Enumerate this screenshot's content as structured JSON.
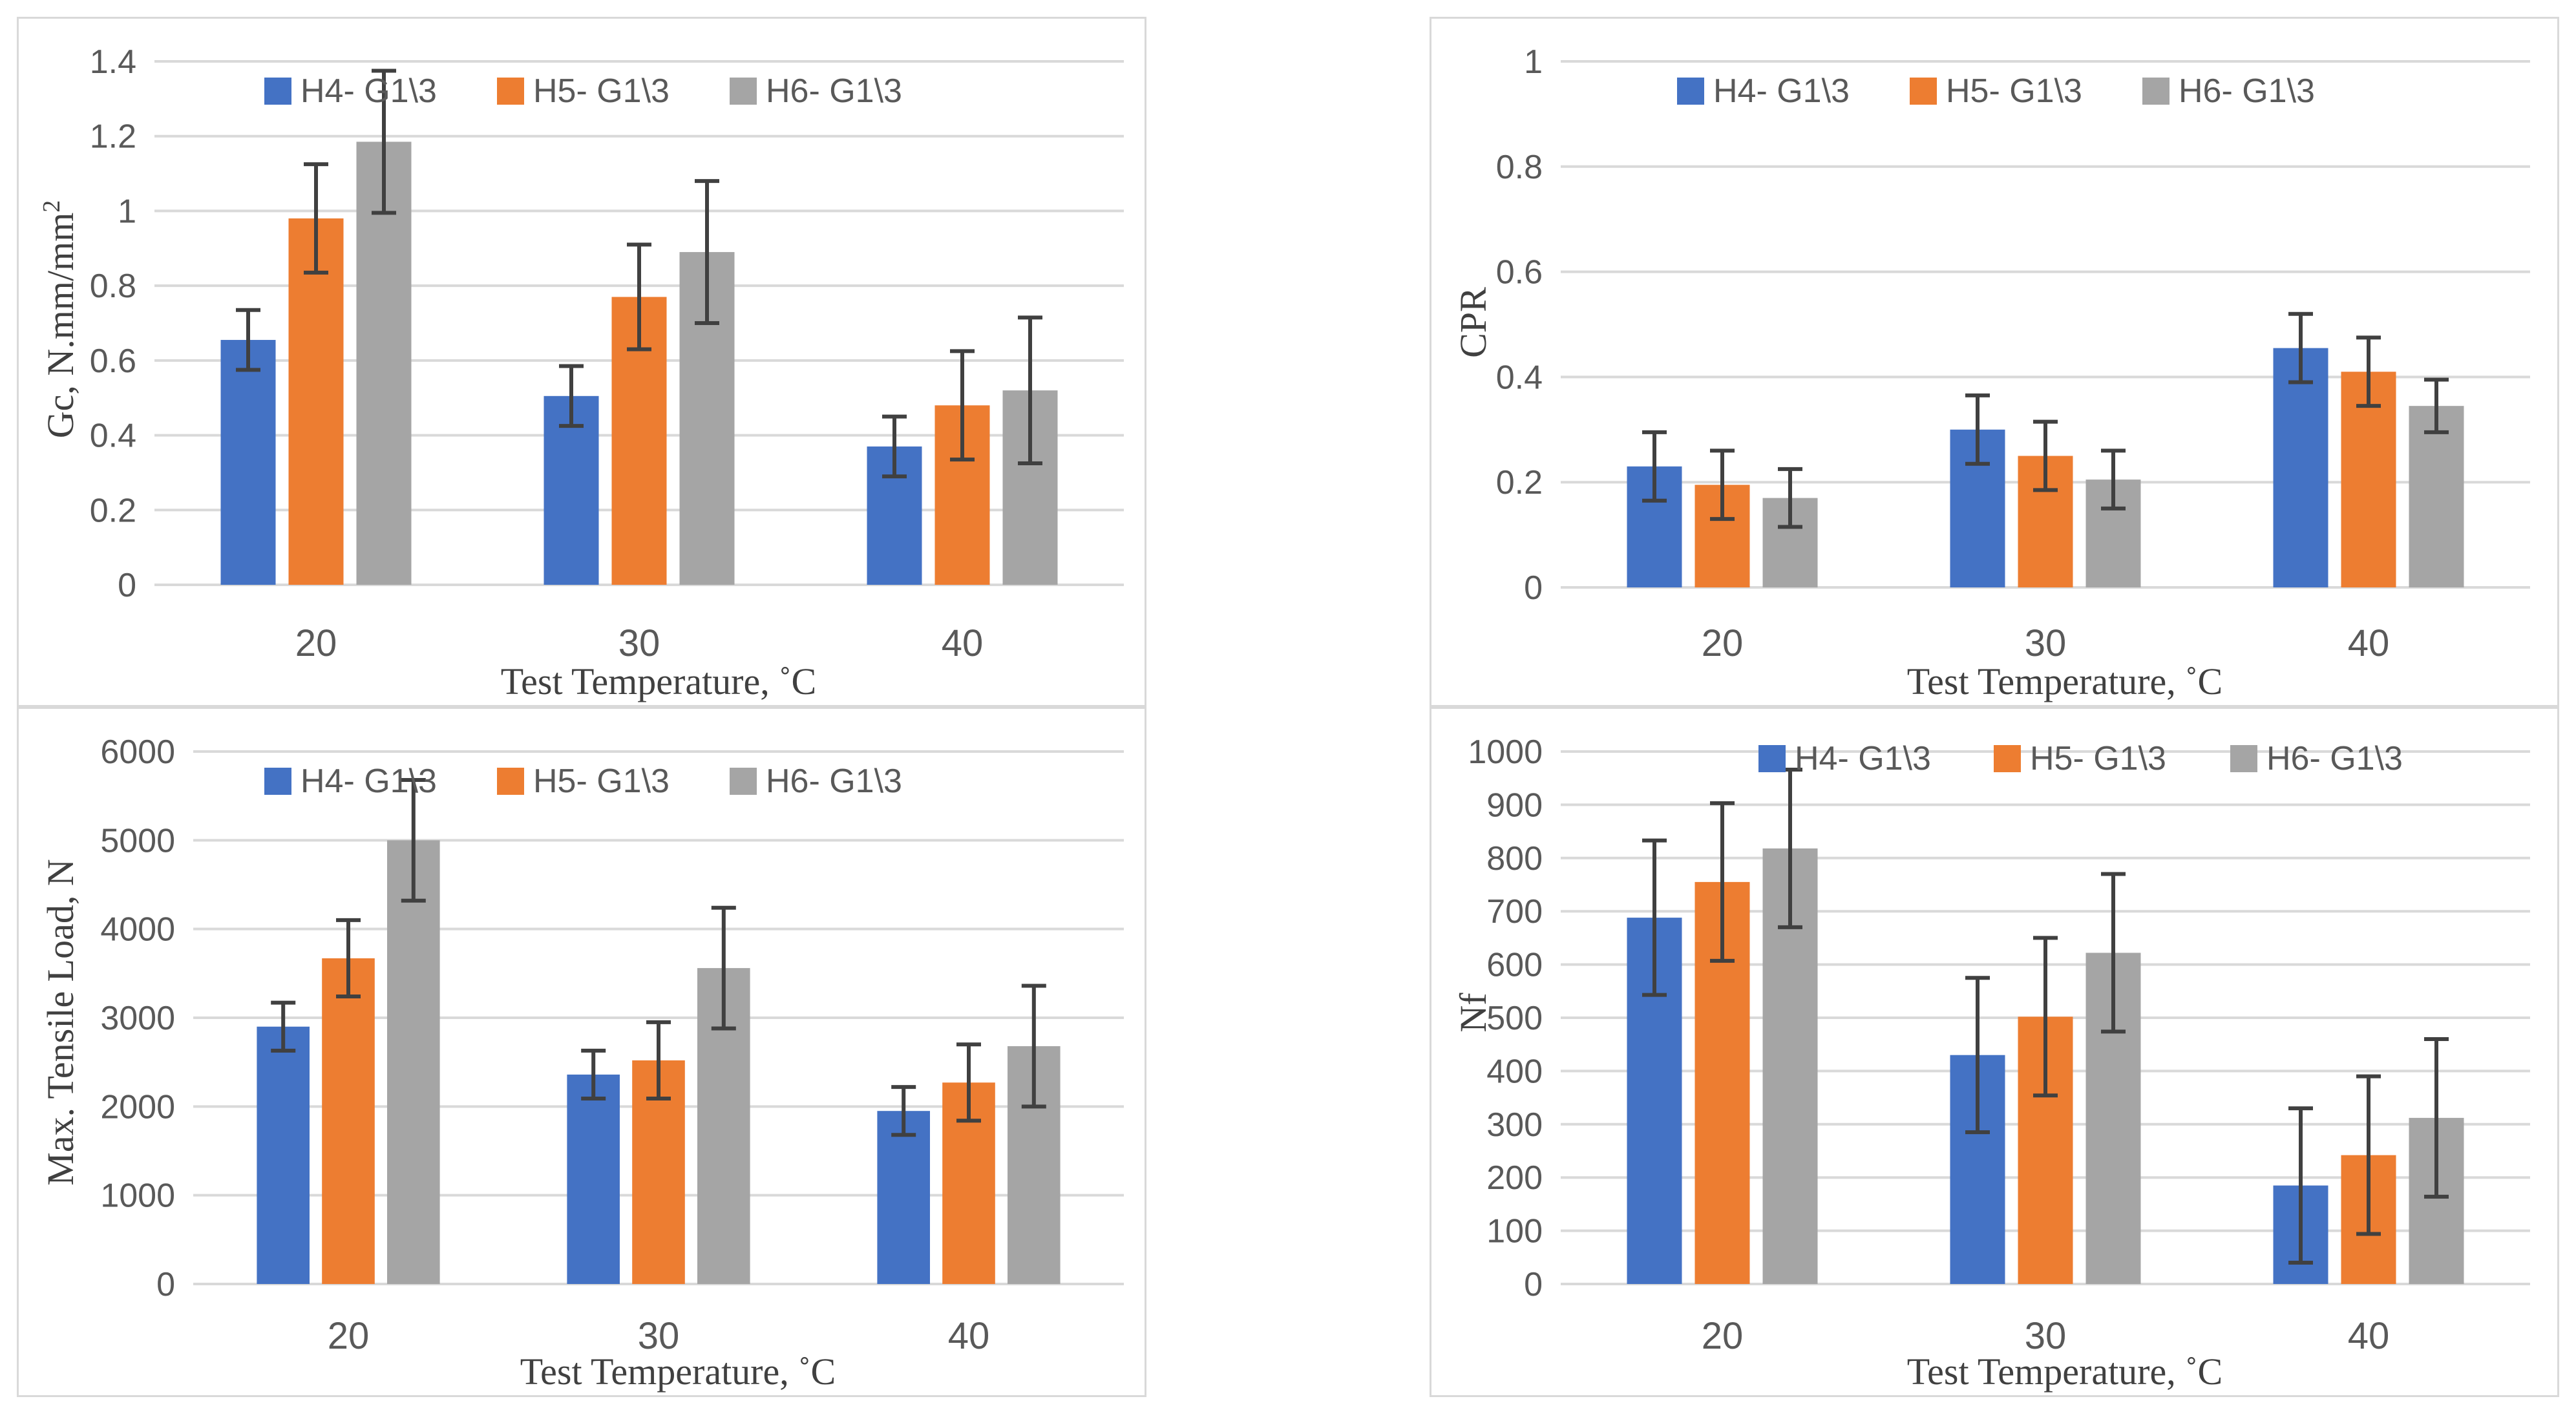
{
  "chart_data": [
    {
      "type": "bar",
      "panel": "top-left",
      "categories": [
        "20",
        "30",
        "40"
      ],
      "series": [
        {
          "name": "H4- G1\\3",
          "values": [
            0.655,
            0.505,
            0.37
          ],
          "errors": [
            0.08,
            0.08,
            0.08
          ]
        },
        {
          "name": "H5- G1\\3",
          "values": [
            0.98,
            0.77,
            0.48
          ],
          "errors": [
            0.145,
            0.14,
            0.145
          ]
        },
        {
          "name": "H6- G1\\3",
          "values": [
            1.185,
            0.89,
            0.52
          ],
          "errors": [
            0.19,
            0.19,
            0.195
          ]
        }
      ],
      "xlabel": "Test Temperature, ˚C",
      "ylabel": "Gc, N.mm/mm",
      "ylabel_sup": "2",
      "ylim": [
        0,
        1.4
      ],
      "yticks": [
        0,
        0.2,
        0.4,
        0.6,
        0.8,
        1,
        1.2,
        1.4
      ],
      "ytick_labels": [
        "0",
        "0.2",
        "0.4",
        "0.6",
        "0.8",
        "1",
        "1.2",
        "1.4"
      ],
      "grid": true,
      "legend": "top"
    },
    {
      "type": "bar",
      "panel": "top-right",
      "categories": [
        "20",
        "30",
        "40"
      ],
      "series": [
        {
          "name": "H4- G1\\3",
          "values": [
            0.23,
            0.3,
            0.455
          ],
          "errors": [
            0.065,
            0.065,
            0.065
          ]
        },
        {
          "name": "H5- G1\\3",
          "values": [
            0.195,
            0.25,
            0.41
          ],
          "errors": [
            0.065,
            0.065,
            0.065
          ]
        },
        {
          "name": "H6- G1\\3",
          "values": [
            0.17,
            0.205,
            0.345
          ],
          "errors": [
            0.055,
            0.055,
            0.05
          ]
        }
      ],
      "xlabel": "Test Temperature, ˚C",
      "ylabel": "CPR",
      "ylim": [
        0,
        1
      ],
      "yticks": [
        0,
        0.2,
        0.4,
        0.6,
        0.8,
        1
      ],
      "ytick_labels": [
        "0",
        "0.2",
        "0.4",
        "0.6",
        "0.8",
        "1"
      ],
      "grid": true,
      "legend": "top"
    },
    {
      "type": "bar",
      "panel": "bottom-left",
      "categories": [
        "20",
        "30",
        "40"
      ],
      "series": [
        {
          "name": "H4- G1\\3",
          "values": [
            2900,
            2360,
            1950
          ],
          "errors": [
            270,
            270,
            270
          ]
        },
        {
          "name": "H5- G1\\3",
          "values": [
            3670,
            2520,
            2270
          ],
          "errors": [
            430,
            430,
            430
          ]
        },
        {
          "name": "H6- G1\\3",
          "values": [
            5000,
            3560,
            2680
          ],
          "errors": [
            680,
            680,
            680
          ]
        }
      ],
      "xlabel": "Test Temperature, ˚C",
      "ylabel": "Max. Tensile Load, N",
      "ylim": [
        0,
        6000
      ],
      "yticks": [
        0,
        1000,
        2000,
        3000,
        4000,
        5000,
        6000
      ],
      "ytick_labels": [
        "0",
        "1000",
        "2000",
        "3000",
        "4000",
        "5000",
        "6000"
      ],
      "grid": true,
      "legend": "top"
    },
    {
      "type": "bar",
      "panel": "bottom-right",
      "categories": [
        "20",
        "30",
        "40"
      ],
      "series": [
        {
          "name": "H4- G1\\3",
          "values": [
            688,
            430,
            185
          ],
          "errors": [
            145,
            145,
            145
          ]
        },
        {
          "name": "H5- G1\\3",
          "values": [
            755,
            502,
            242
          ],
          "errors": [
            148,
            148,
            148
          ]
        },
        {
          "name": "H6- G1\\3",
          "values": [
            818,
            622,
            312
          ],
          "errors": [
            148,
            148,
            148
          ]
        }
      ],
      "xlabel": "Test Temperature, ˚C",
      "ylabel": "Nf",
      "ylim": [
        0,
        1000
      ],
      "yticks": [
        0,
        100,
        200,
        300,
        400,
        500,
        600,
        700,
        800,
        900,
        1000
      ],
      "ytick_labels": [
        "0",
        "100",
        "200",
        "300",
        "400",
        "500",
        "600",
        "700",
        "800",
        "900",
        "1000"
      ],
      "grid": true,
      "legend": "top"
    }
  ],
  "colors": {
    "H4": "#4472c4",
    "H5": "#ed7d31",
    "H6": "#a5a5a5",
    "grid": "#d9d9d9",
    "error": "#404040"
  }
}
